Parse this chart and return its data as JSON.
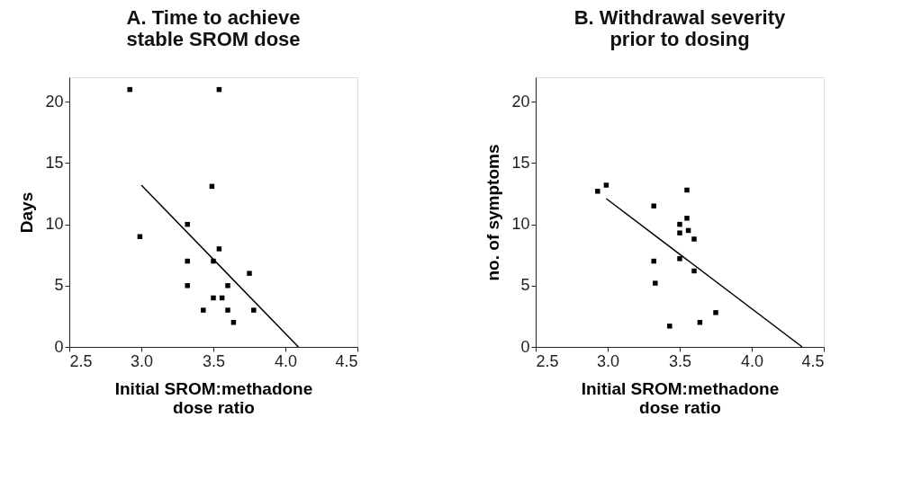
{
  "chart_data": [
    {
      "type": "scatter",
      "title": "A. Time to achieve\nstable SROM dose",
      "xlabel": "Initial SROM:methadone\ndose ratio",
      "ylabel": "Days",
      "xlim": [
        2.5,
        4.5
      ],
      "xticks": [
        {
          "value": 2.5,
          "label": "2.5"
        },
        {
          "value": 3,
          "label": "3.0"
        },
        {
          "value": 3.5,
          "label": "3.5"
        },
        {
          "value": 4,
          "label": "4.0"
        },
        {
          "value": 4.5,
          "label": "4.5"
        }
      ],
      "ylim": [
        0,
        22
      ],
      "yticks": [
        0,
        5,
        10,
        15,
        20
      ],
      "grid": false,
      "series": [
        {
          "marker": "square",
          "color": "#000000",
          "x": [
            2.92,
            3.54,
            3.49,
            3.32,
            2.99,
            3.54,
            3.32,
            3.5,
            3.75,
            3.32,
            3.6,
            3.5,
            3.56,
            3.43,
            3.6,
            3.78,
            3.64
          ],
          "values": [
            21,
            21,
            13.1,
            10,
            9,
            8,
            7,
            7,
            6,
            5,
            5,
            4,
            4,
            3,
            3,
            3,
            2
          ]
        },
        {
          "type": "line",
          "color": "#000000",
          "x": [
            3.0,
            4.09
          ],
          "values": [
            13.2,
            0
          ]
        }
      ]
    },
    {
      "type": "scatter",
      "title": "B. Withdrawal severity\nprior to dosing",
      "xlabel": "Initial SROM:methadone\ndose ratio",
      "ylabel": "no. of symptoms",
      "xlim": [
        2.5,
        4.5
      ],
      "xticks": [
        {
          "value": 2.5,
          "label": "2.5"
        },
        {
          "value": 3,
          "label": "3.0"
        },
        {
          "value": 3.5,
          "label": "3.5"
        },
        {
          "value": 4,
          "label": "4.0"
        },
        {
          "value": 4.5,
          "label": "4.5"
        }
      ],
      "ylim": [
        0,
        22
      ],
      "yticks": [
        0,
        5,
        10,
        15,
        20
      ],
      "grid": false,
      "series": [
        {
          "marker": "square",
          "color": "#000000",
          "x": [
            2.93,
            2.99,
            3.32,
            3.55,
            3.55,
            3.5,
            3.5,
            3.56,
            3.6,
            3.5,
            3.6,
            3.32,
            3.33,
            3.75,
            3.64,
            3.43
          ],
          "values": [
            12.7,
            13.2,
            11.5,
            12.8,
            10.5,
            10.0,
            9.3,
            9.5,
            8.8,
            7.2,
            6.2,
            7.0,
            5.2,
            2.8,
            2.0,
            1.7
          ]
        },
        {
          "type": "line",
          "color": "#000000",
          "x": [
            2.99,
            4.35
          ],
          "values": [
            12.1,
            0
          ]
        }
      ]
    }
  ]
}
